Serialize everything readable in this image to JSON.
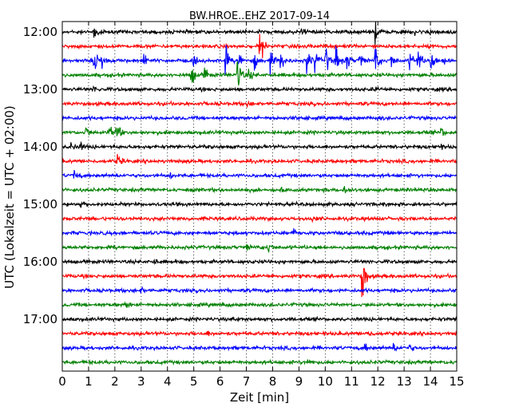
{
  "chart_data": {
    "type": "line",
    "title": "BW.HROE..EHZ 2017-09-14",
    "xlabel": "Zeit  [min]",
    "ylabel": "UTC (Lokalzeit = UTC + 02:00)",
    "xlim": [
      0,
      15
    ],
    "x_ticks": [
      0,
      1,
      2,
      3,
      4,
      5,
      6,
      7,
      8,
      9,
      10,
      11,
      12,
      13,
      14,
      15
    ],
    "y_tick_labels": [
      "12:00",
      "13:00",
      "14:00",
      "15:00",
      "16:00",
      "17:00"
    ],
    "trace_interval_min": 15,
    "grid": "vertical dotted lines at each minute",
    "colors": [
      "#000000",
      "#ff0000",
      "#0000ff",
      "#008000"
    ],
    "traces": [
      {
        "start": "12:00",
        "color": "#000000",
        "events": [
          {
            "t": 1.2,
            "amp": 14
          },
          {
            "t": 9.1,
            "amp": 5
          },
          {
            "t": 11.9,
            "amp": 12
          },
          {
            "t": 13.4,
            "amp": 5
          },
          {
            "t": 14.0,
            "amp": 5
          }
        ]
      },
      {
        "start": "12:15",
        "color": "#ff0000",
        "events": [
          {
            "t": 7.5,
            "amp": 14
          },
          {
            "t": 7.6,
            "amp": 6
          }
        ]
      },
      {
        "start": "12:30",
        "color": "#0000ff",
        "events": [
          {
            "t": 1.2,
            "amp": 20
          },
          {
            "t": 1.5,
            "amp": 10
          },
          {
            "t": 3.1,
            "amp": 8
          },
          {
            "t": 5.0,
            "amp": 8
          },
          {
            "t": 6.2,
            "amp": 18
          },
          {
            "t": 6.7,
            "amp": 15
          },
          {
            "t": 7.3,
            "amp": 10
          },
          {
            "t": 7.9,
            "amp": 15
          },
          {
            "t": 8.3,
            "amp": 16
          },
          {
            "t": 9.3,
            "amp": 18
          },
          {
            "t": 9.6,
            "amp": 14
          },
          {
            "t": 10.0,
            "amp": 20
          },
          {
            "t": 10.4,
            "amp": 18
          },
          {
            "t": 10.8,
            "amp": 15
          },
          {
            "t": 11.3,
            "amp": 12
          },
          {
            "t": 11.9,
            "amp": 20
          },
          {
            "t": 12.5,
            "amp": 10
          },
          {
            "t": 13.2,
            "amp": 12
          },
          {
            "t": 13.5,
            "amp": 20
          },
          {
            "t": 14.0,
            "amp": 18
          },
          {
            "t": 14.5,
            "amp": 8
          }
        ]
      },
      {
        "start": "12:45",
        "color": "#008000",
        "events": [
          {
            "t": 4.9,
            "amp": 14
          },
          {
            "t": 5.4,
            "amp": 10
          },
          {
            "t": 6.65,
            "amp": 30
          },
          {
            "t": 7.1,
            "amp": 6
          }
        ]
      },
      {
        "start": "13:00",
        "color": "#000000",
        "events": [
          {
            "t": 1.2,
            "amp": 4
          },
          {
            "t": 11.9,
            "amp": 3
          }
        ]
      },
      {
        "start": "13:15",
        "color": "#ff0000",
        "events": [
          {
            "t": 7.0,
            "amp": 4
          }
        ]
      },
      {
        "start": "13:30",
        "color": "#0000ff",
        "events": [
          {
            "t": 9.0,
            "amp": 3
          },
          {
            "t": 12.0,
            "amp": 3
          }
        ]
      },
      {
        "start": "13:45",
        "color": "#008000",
        "events": [
          {
            "t": 0.9,
            "amp": 8
          },
          {
            "t": 1.75,
            "amp": 9
          },
          {
            "t": 2.05,
            "amp": 16
          },
          {
            "t": 14.4,
            "amp": 6
          }
        ]
      },
      {
        "start": "14:00",
        "color": "#000000",
        "events": [
          {
            "t": 0.3,
            "amp": 7
          },
          {
            "t": 0.7,
            "amp": 5
          },
          {
            "t": 14.3,
            "amp": 4
          }
        ]
      },
      {
        "start": "14:15",
        "color": "#ff0000",
        "events": [
          {
            "t": 2.1,
            "amp": 7
          }
        ]
      },
      {
        "start": "14:30",
        "color": "#0000ff",
        "events": [
          {
            "t": 0.45,
            "amp": 6
          },
          {
            "t": 4.1,
            "amp": 3
          }
        ]
      },
      {
        "start": "14:45",
        "color": "#008000",
        "events": [
          {
            "t": 10.7,
            "amp": 8
          },
          {
            "t": 8.3,
            "amp": 3
          }
        ]
      },
      {
        "start": "15:00",
        "color": "#000000",
        "events": [
          {
            "t": 0.7,
            "amp": 6
          }
        ]
      },
      {
        "start": "15:15",
        "color": "#ff0000",
        "events": [
          {
            "t": 9.5,
            "amp": 3
          }
        ]
      },
      {
        "start": "15:30",
        "color": "#0000ff",
        "events": [
          {
            "t": 8.8,
            "amp": 4
          }
        ]
      },
      {
        "start": "15:45",
        "color": "#008000",
        "events": [
          {
            "t": 7.8,
            "amp": 8
          },
          {
            "t": 7.0,
            "amp": 4
          }
        ]
      },
      {
        "start": "16:00",
        "color": "#000000",
        "events": [
          {
            "t": 3.5,
            "amp": 3
          }
        ]
      },
      {
        "start": "16:15",
        "color": "#ff0000",
        "events": [
          {
            "t": 11.4,
            "amp": 42
          }
        ]
      },
      {
        "start": "16:30",
        "color": "#0000ff",
        "events": [
          {
            "t": 3.0,
            "amp": 3
          }
        ]
      },
      {
        "start": "16:45",
        "color": "#008000",
        "events": [
          {
            "t": 2.4,
            "amp": 4
          }
        ]
      },
      {
        "start": "17:00",
        "color": "#000000",
        "events": [
          {
            "t": 6.5,
            "amp": 3
          }
        ]
      },
      {
        "start": "17:15",
        "color": "#ff0000",
        "events": [
          {
            "t": 11.6,
            "amp": 7
          },
          {
            "t": 5.5,
            "amp": 3
          }
        ]
      },
      {
        "start": "17:30",
        "color": "#0000ff",
        "events": [
          {
            "t": 11.5,
            "amp": 5
          },
          {
            "t": 12.6,
            "amp": 6
          },
          {
            "t": 13.2,
            "amp": 4
          }
        ]
      },
      {
        "start": "17:45",
        "color": "#008000",
        "events": [
          {
            "t": 9.3,
            "amp": 7
          }
        ]
      }
    ]
  }
}
